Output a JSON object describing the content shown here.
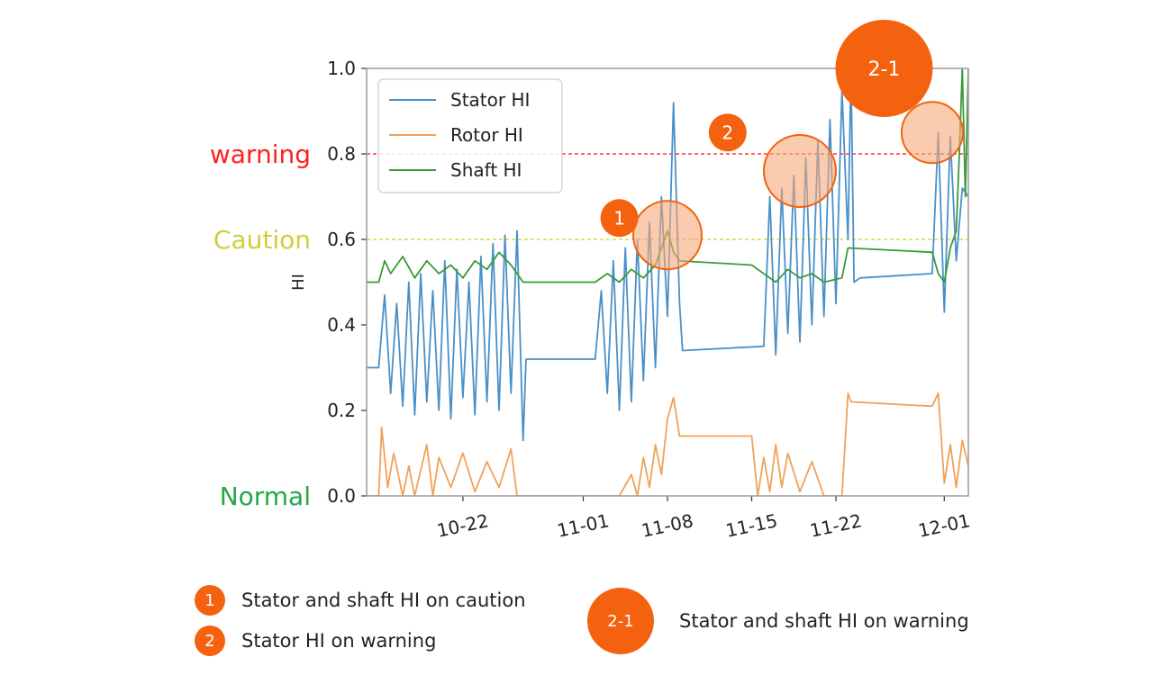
{
  "chart_data": {
    "type": "line",
    "ylabel": "HI",
    "ylim": [
      0.0,
      1.0
    ],
    "yticks": [
      "0.0",
      "0.2",
      "0.4",
      "0.6",
      "0.8",
      "1.0"
    ],
    "xlim": [
      "2024-10-14",
      "2024-12-03"
    ],
    "xticks": [
      {
        "date": "2024-10-22",
        "label": "10-22"
      },
      {
        "date": "2024-11-01",
        "label": "11-01"
      },
      {
        "date": "2024-11-08",
        "label": "11-08"
      },
      {
        "date": "2024-11-15",
        "label": "11-15"
      },
      {
        "date": "2024-11-22",
        "label": "11-22"
      },
      {
        "date": "2024-12-01",
        "label": "12-01"
      }
    ],
    "thresholds": [
      {
        "label": "warning",
        "value": 0.8,
        "color": "#ff3b3b"
      },
      {
        "label": "Caution",
        "value": 0.6,
        "color": "#d8d84a"
      }
    ],
    "zone_labels": [
      {
        "label": "warning",
        "value": 0.8,
        "color": "#ff2020"
      },
      {
        "label": "Caution",
        "value": 0.6,
        "color": "#cfcf3a"
      },
      {
        "label": "Normal",
        "value": 0.0,
        "color": "#22a84a"
      }
    ],
    "legend_position": "top-left",
    "series": [
      {
        "name": "Stator HI",
        "color": "#4a90c8",
        "points": [
          [
            "2024-10-14",
            0.3
          ],
          [
            "2024-10-15",
            0.3
          ],
          [
            "2024-10-15T12:00",
            0.47
          ],
          [
            "2024-10-16",
            0.24
          ],
          [
            "2024-10-16T12:00",
            0.45
          ],
          [
            "2024-10-17",
            0.21
          ],
          [
            "2024-10-17T12:00",
            0.5
          ],
          [
            "2024-10-18",
            0.19
          ],
          [
            "2024-10-18T12:00",
            0.52
          ],
          [
            "2024-10-19",
            0.22
          ],
          [
            "2024-10-19T12:00",
            0.48
          ],
          [
            "2024-10-20",
            0.2
          ],
          [
            "2024-10-20T12:00",
            0.55
          ],
          [
            "2024-10-21",
            0.18
          ],
          [
            "2024-10-21T12:00",
            0.53
          ],
          [
            "2024-10-22",
            0.23
          ],
          [
            "2024-10-22T12:00",
            0.5
          ],
          [
            "2024-10-23",
            0.19
          ],
          [
            "2024-10-23T12:00",
            0.56
          ],
          [
            "2024-10-24",
            0.22
          ],
          [
            "2024-10-24T12:00",
            0.59
          ],
          [
            "2024-10-25",
            0.2
          ],
          [
            "2024-10-25T12:00",
            0.61
          ],
          [
            "2024-10-26",
            0.24
          ],
          [
            "2024-10-26T12:00",
            0.62
          ],
          [
            "2024-10-27",
            0.13
          ],
          [
            "2024-10-27T06:00",
            0.32
          ],
          [
            "2024-11-02",
            0.32
          ],
          [
            "2024-11-02T12:00",
            0.48
          ],
          [
            "2024-11-03",
            0.24
          ],
          [
            "2024-11-03T12:00",
            0.55
          ],
          [
            "2024-11-04",
            0.2
          ],
          [
            "2024-11-04T12:00",
            0.58
          ],
          [
            "2024-11-05",
            0.22
          ],
          [
            "2024-11-05T12:00",
            0.6
          ],
          [
            "2024-11-06",
            0.27
          ],
          [
            "2024-11-06T12:00",
            0.64
          ],
          [
            "2024-11-07",
            0.3
          ],
          [
            "2024-11-07T12:00",
            0.7
          ],
          [
            "2024-11-08",
            0.42
          ],
          [
            "2024-11-08T12:00",
            0.92
          ],
          [
            "2024-11-09",
            0.45
          ],
          [
            "2024-11-09T06:00",
            0.34
          ],
          [
            "2024-11-16",
            0.35
          ],
          [
            "2024-11-16T12:00",
            0.7
          ],
          [
            "2024-11-17",
            0.33
          ],
          [
            "2024-11-17T12:00",
            0.72
          ],
          [
            "2024-11-18",
            0.38
          ],
          [
            "2024-11-18T12:00",
            0.75
          ],
          [
            "2024-11-19",
            0.36
          ],
          [
            "2024-11-19T12:00",
            0.79
          ],
          [
            "2024-11-20",
            0.4
          ],
          [
            "2024-11-20T12:00",
            0.83
          ],
          [
            "2024-11-21",
            0.42
          ],
          [
            "2024-11-21T12:00",
            0.88
          ],
          [
            "2024-11-22",
            0.45
          ],
          [
            "2024-11-22T12:00",
            0.95
          ],
          [
            "2024-11-23",
            0.6
          ],
          [
            "2024-11-23T06:00",
            1.0
          ],
          [
            "2024-11-23T12:00",
            0.5
          ],
          [
            "2024-11-24",
            0.51
          ],
          [
            "2024-11-30",
            0.52
          ],
          [
            "2024-11-30T12:00",
            0.85
          ],
          [
            "2024-12-01",
            0.43
          ],
          [
            "2024-12-01T12:00",
            0.84
          ],
          [
            "2024-12-02",
            0.55
          ],
          [
            "2024-12-02T12:00",
            0.72
          ],
          [
            "2024-12-03",
            0.7
          ]
        ]
      },
      {
        "name": "Rotor HI",
        "color": "#f0a15a",
        "points": [
          [
            "2024-10-14",
            0.0
          ],
          [
            "2024-10-15",
            0.0
          ],
          [
            "2024-10-15T06:00",
            0.16
          ],
          [
            "2024-10-15T18:00",
            0.02
          ],
          [
            "2024-10-16T06:00",
            0.1
          ],
          [
            "2024-10-17",
            0.0
          ],
          [
            "2024-10-17T12:00",
            0.07
          ],
          [
            "2024-10-18",
            0.0
          ],
          [
            "2024-10-19",
            0.12
          ],
          [
            "2024-10-19T12:00",
            0.0
          ],
          [
            "2024-10-20",
            0.09
          ],
          [
            "2024-10-21",
            0.02
          ],
          [
            "2024-10-22",
            0.1
          ],
          [
            "2024-10-23",
            0.01
          ],
          [
            "2024-10-24",
            0.08
          ],
          [
            "2024-10-25",
            0.02
          ],
          [
            "2024-10-26",
            0.11
          ],
          [
            "2024-10-26T12:00",
            0.0
          ],
          [
            "2024-11-04",
            0.0
          ],
          [
            "2024-11-05",
            0.05
          ],
          [
            "2024-11-05T12:00",
            0.0
          ],
          [
            "2024-11-06",
            0.09
          ],
          [
            "2024-11-06T12:00",
            0.02
          ],
          [
            "2024-11-07",
            0.12
          ],
          [
            "2024-11-07T12:00",
            0.05
          ],
          [
            "2024-11-08",
            0.18
          ],
          [
            "2024-11-08T12:00",
            0.23
          ],
          [
            "2024-11-09",
            0.14
          ],
          [
            "2024-11-15",
            0.14
          ],
          [
            "2024-11-15T12:00",
            0.0
          ],
          [
            "2024-11-16",
            0.09
          ],
          [
            "2024-11-16T12:00",
            0.01
          ],
          [
            "2024-11-17",
            0.12
          ],
          [
            "2024-11-17T12:00",
            0.02
          ],
          [
            "2024-11-18",
            0.1
          ],
          [
            "2024-11-19",
            0.01
          ],
          [
            "2024-11-20",
            0.08
          ],
          [
            "2024-11-21",
            0.0
          ],
          [
            "2024-11-22T12:00",
            0.0
          ],
          [
            "2024-11-23",
            0.24
          ],
          [
            "2024-11-23T06:00",
            0.22
          ],
          [
            "2024-11-30",
            0.21
          ],
          [
            "2024-11-30T12:00",
            0.24
          ],
          [
            "2024-12-01",
            0.03
          ],
          [
            "2024-12-01T12:00",
            0.12
          ],
          [
            "2024-12-02",
            0.02
          ],
          [
            "2024-12-02T12:00",
            0.13
          ],
          [
            "2024-12-03",
            0.07
          ]
        ]
      },
      {
        "name": "Shaft HI",
        "color": "#3a9a3a",
        "points": [
          [
            "2024-10-14",
            0.5
          ],
          [
            "2024-10-15",
            0.5
          ],
          [
            "2024-10-15T12:00",
            0.55
          ],
          [
            "2024-10-16",
            0.52
          ],
          [
            "2024-10-17",
            0.56
          ],
          [
            "2024-10-18",
            0.51
          ],
          [
            "2024-10-19",
            0.55
          ],
          [
            "2024-10-20",
            0.52
          ],
          [
            "2024-10-21",
            0.54
          ],
          [
            "2024-10-22",
            0.51
          ],
          [
            "2024-10-23",
            0.55
          ],
          [
            "2024-10-24",
            0.53
          ],
          [
            "2024-10-25",
            0.57
          ],
          [
            "2024-10-26",
            0.54
          ],
          [
            "2024-10-27",
            0.5
          ],
          [
            "2024-11-02",
            0.5
          ],
          [
            "2024-11-03",
            0.52
          ],
          [
            "2024-11-04",
            0.5
          ],
          [
            "2024-11-05",
            0.53
          ],
          [
            "2024-11-06",
            0.51
          ],
          [
            "2024-11-07",
            0.54
          ],
          [
            "2024-11-07T12:00",
            0.58
          ],
          [
            "2024-11-08",
            0.62
          ],
          [
            "2024-11-08T12:00",
            0.57
          ],
          [
            "2024-11-09",
            0.55
          ],
          [
            "2024-11-15",
            0.54
          ],
          [
            "2024-11-16",
            0.52
          ],
          [
            "2024-11-17",
            0.5
          ],
          [
            "2024-11-18",
            0.53
          ],
          [
            "2024-11-19",
            0.51
          ],
          [
            "2024-11-20",
            0.52
          ],
          [
            "2024-11-21",
            0.5
          ],
          [
            "2024-11-22T12:00",
            0.51
          ],
          [
            "2024-11-23",
            0.58
          ],
          [
            "2024-11-30",
            0.57
          ],
          [
            "2024-11-30T12:00",
            0.52
          ],
          [
            "2024-12-01",
            0.5
          ],
          [
            "2024-12-01T12:00",
            0.58
          ],
          [
            "2024-12-02",
            0.62
          ],
          [
            "2024-12-02T06:00",
            0.8
          ],
          [
            "2024-12-02T12:00",
            1.0
          ],
          [
            "2024-12-02T18:00",
            0.7
          ],
          [
            "2024-12-03",
            1.0
          ]
        ]
      }
    ],
    "callouts": [
      {
        "label": "1",
        "date": "2024-11-08",
        "value": 0.61,
        "badge_date": "2024-11-04",
        "badge_value": 0.65
      },
      {
        "label": "2",
        "date": "2024-11-19",
        "value": 0.76,
        "badge_date": "2024-11-13",
        "badge_value": 0.85
      },
      {
        "label": "2-1",
        "date": "2024-11-30",
        "value": 0.85,
        "badge_date": "2024-11-26",
        "badge_value": 1.0
      }
    ]
  },
  "notes": {
    "note1": {
      "badge": "1",
      "text": "Stator and shaft HI on caution"
    },
    "note2": {
      "badge": "2",
      "text": "Stator HI on warning"
    },
    "note3": {
      "badge": "2-1",
      "text": "Stator and shaft HI on warning"
    }
  }
}
